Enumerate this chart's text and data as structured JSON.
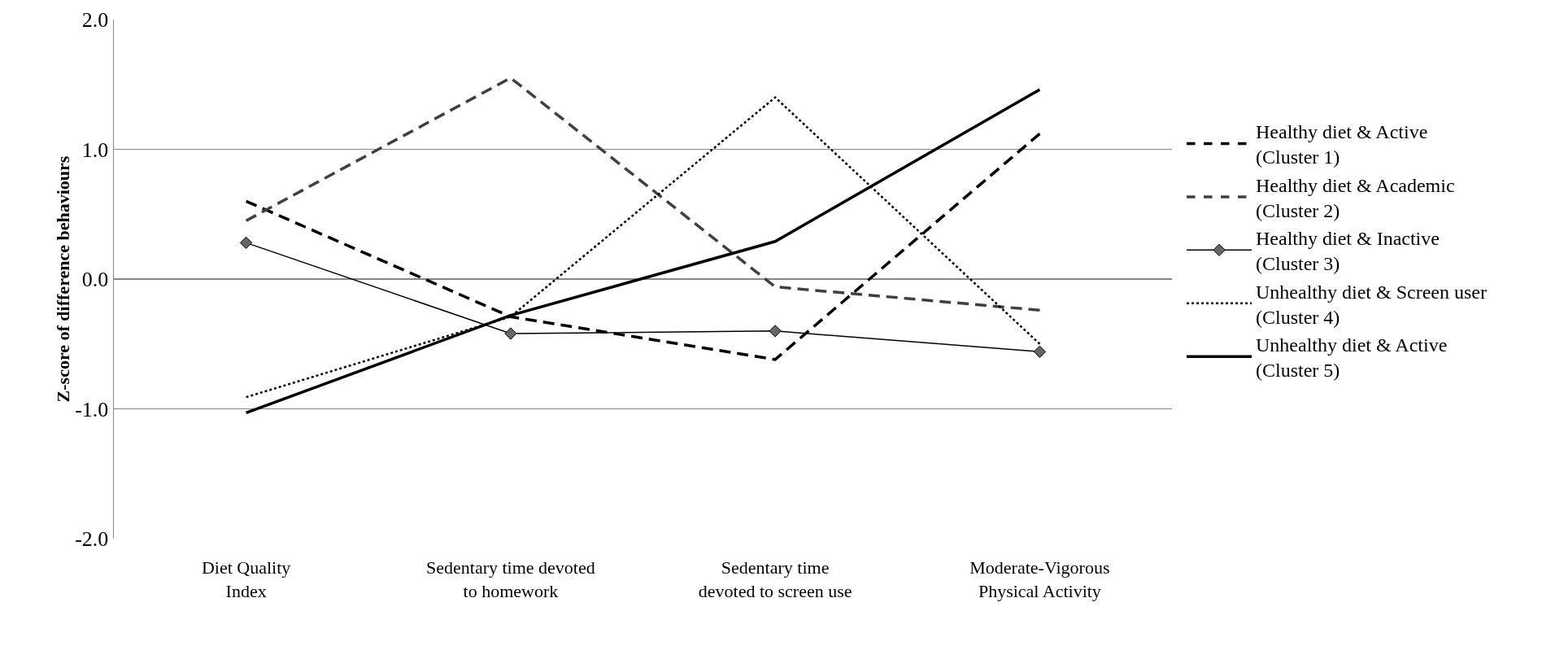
{
  "chart_data": {
    "type": "line",
    "ylabel": "Z-score of difference behaviours",
    "categories": [
      "Diet Quality\nIndex",
      "Sedentary time devoted\nto homework",
      "Sedentary time\ndevoted to screen use",
      "Moderate-Vigorous\nPhysical Activity"
    ],
    "series": [
      {
        "name": "Healthy diet & Active\n(Cluster 1)",
        "color": "#000000",
        "line_style": "dashed",
        "values": [
          0.6,
          -0.29,
          -0.62,
          1.12
        ]
      },
      {
        "name": "Healthy diet & Academic\n(Cluster 2)",
        "color": "#404040",
        "line_style": "dashed",
        "values": [
          0.45,
          1.55,
          -0.06,
          -0.24
        ]
      },
      {
        "name": "Healthy diet & Inactive\n(Cluster 3)",
        "color": "#000000",
        "line_style": "solid",
        "marker": "diamond",
        "values": [
          0.28,
          -0.42,
          -0.4,
          -0.56
        ]
      },
      {
        "name": "Unhealthy diet & Screen user\n(Cluster 4)",
        "color": "#000000",
        "line_style": "dotted",
        "values": [
          -0.91,
          -0.29,
          1.4,
          -0.5
        ]
      },
      {
        "name": "Unhealthy diet & Active\n(Cluster 5)",
        "color": "#000000",
        "line_style": "solid",
        "values": [
          -1.03,
          -0.28,
          0.29,
          1.46
        ]
      }
    ],
    "ylim": [
      -2,
      2
    ],
    "yticks": [
      {
        "value": -2,
        "label": "-2.0"
      },
      {
        "value": -1,
        "label": "-1.0"
      },
      {
        "value": 0,
        "label": "0.0"
      },
      {
        "value": 1,
        "label": "1.0"
      },
      {
        "value": 2,
        "label": "2.0"
      }
    ],
    "grid": "y",
    "legend": "right"
  }
}
